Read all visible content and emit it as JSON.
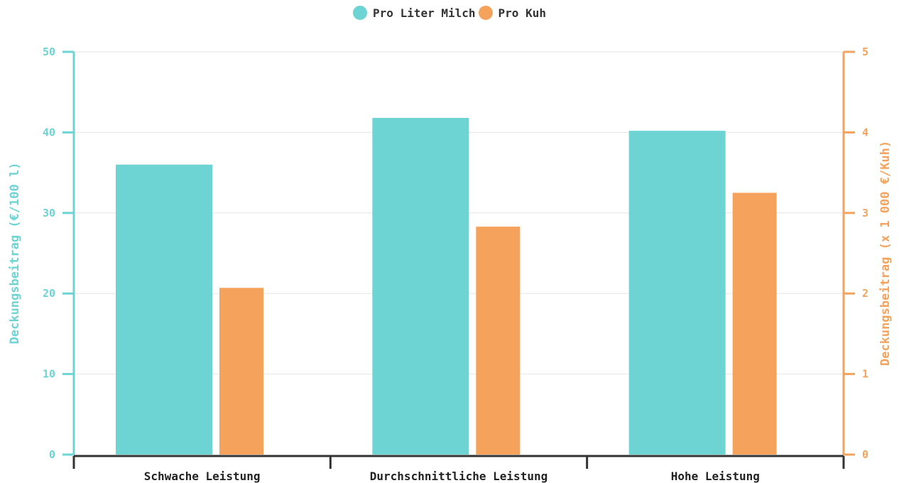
{
  "chart_data": {
    "type": "bar",
    "categories": [
      "Schwache Leistung",
      "Durchschnittliche Leistung",
      "Hohe Leistung"
    ],
    "series": [
      {
        "name": "Pro Liter Milch",
        "axis": "left",
        "color": "#6dd3d3",
        "values": [
          36.0,
          41.8,
          40.2
        ]
      },
      {
        "name": "Pro Kuh",
        "axis": "right",
        "color": "#f5a35c",
        "values": [
          2.07,
          2.83,
          3.25
        ]
      }
    ],
    "y_left": {
      "label": "Deckungsbeitrag (€/100 l)",
      "ticks": [
        "0",
        "10",
        "20",
        "30",
        "40",
        "50"
      ],
      "ylim": [
        0,
        50
      ],
      "color": "#6dd3d3"
    },
    "y_right": {
      "label": "Deckungsbeitrag (x 1 000 €/Kuh)",
      "ticks": [
        "0",
        "1",
        "2",
        "3",
        "4",
        "5"
      ],
      "ylim": [
        0,
        5
      ],
      "color": "#f5a35c"
    },
    "grid": true,
    "legend_position": "top-center"
  }
}
